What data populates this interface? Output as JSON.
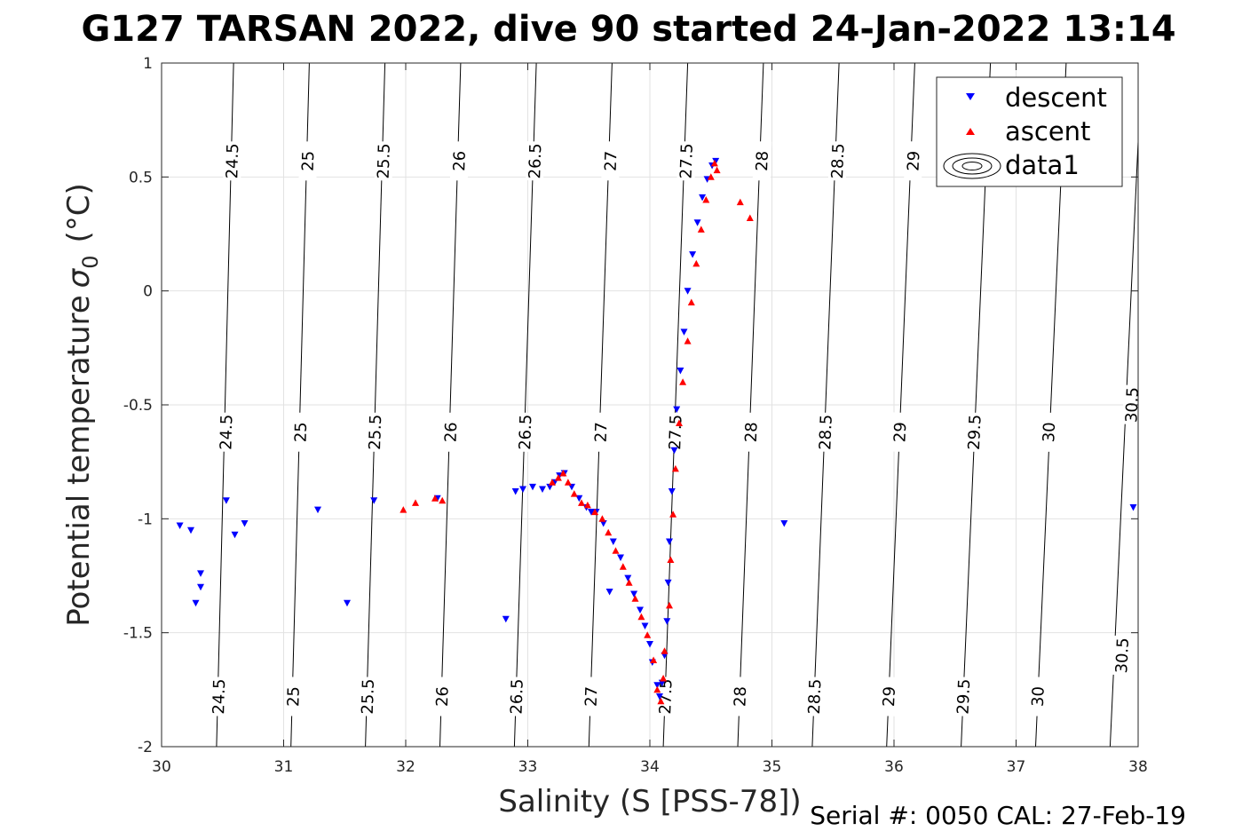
{
  "chart_data": {
    "type": "scatter",
    "title": "G127 TARSAN 2022, dive 90 started 24-Jan-2022 13:14",
    "xlabel": "Salinity (S [PSS-78])",
    "ylabel_main": "Potential temperature",
    "ylabel_symbol": "σ",
    "ylabel_subscript": "0",
    "ylabel_unit": "(°C)",
    "footer": "Serial #: 0050  CAL: 27-Feb-19",
    "xlim": [
      30,
      38
    ],
    "ylim": [
      -2,
      1
    ],
    "x_ticks": [
      30,
      31,
      32,
      33,
      34,
      35,
      36,
      37,
      38
    ],
    "x_tick_labels": [
      "30",
      "31",
      "32",
      "33",
      "34",
      "35",
      "36",
      "37",
      "38"
    ],
    "y_ticks": [
      1,
      0.5,
      0,
      -0.5,
      -1,
      -1.5,
      -2
    ],
    "y_tick_labels": [
      "1",
      "0.5",
      "0",
      "-0.5",
      "-1",
      "-1.5",
      "-2"
    ],
    "grid": true,
    "legend_position": "top-right",
    "legend": [
      {
        "label": "descent",
        "marker": "triangle-down",
        "color": "#0000ff"
      },
      {
        "label": "ascent",
        "marker": "triangle-up",
        "color": "#ff0000"
      },
      {
        "label": "data1",
        "marker": "contour",
        "color": "#000000"
      }
    ],
    "density_contours": {
      "levels": [
        "24.5",
        "25",
        "25.5",
        "26",
        "26.5",
        "27",
        "27.5",
        "28",
        "28.5",
        "29",
        "29.5",
        "30",
        "30.5"
      ],
      "lines": [
        {
          "label": "24.5",
          "points": [
            [
              30.45,
              -2
            ],
            [
              30.59,
              1
            ]
          ],
          "label_positions": [
            [
              30.47,
              -1.78
            ],
            [
              30.53,
              -0.62
            ],
            [
              30.58,
              0.57
            ]
          ]
        },
        {
          "label": "25",
          "points": [
            [
              31.06,
              -2
            ],
            [
              31.21,
              1
            ]
          ],
          "label_positions": [
            [
              31.08,
              -1.78
            ],
            [
              31.14,
              -0.62
            ],
            [
              31.2,
              0.57
            ]
          ]
        },
        {
          "label": "25.5",
          "points": [
            [
              31.67,
              -2
            ],
            [
              31.83,
              1
            ]
          ],
          "label_positions": [
            [
              31.69,
              -1.78
            ],
            [
              31.75,
              -0.62
            ],
            [
              31.82,
              0.57
            ]
          ]
        },
        {
          "label": "26",
          "points": [
            [
              32.28,
              -2
            ],
            [
              32.45,
              1
            ]
          ],
          "label_positions": [
            [
              32.3,
              -1.78
            ],
            [
              32.37,
              -0.62
            ],
            [
              32.44,
              0.57
            ]
          ]
        },
        {
          "label": "26.5",
          "points": [
            [
              32.89,
              -2
            ],
            [
              33.07,
              1
            ]
          ],
          "label_positions": [
            [
              32.91,
              -1.78
            ],
            [
              32.98,
              -0.62
            ],
            [
              33.06,
              0.57
            ]
          ]
        },
        {
          "label": "27",
          "points": [
            [
              33.5,
              -2
            ],
            [
              33.69,
              1
            ]
          ],
          "label_positions": [
            [
              33.52,
              -1.78
            ],
            [
              33.6,
              -0.62
            ],
            [
              33.68,
              0.57
            ]
          ]
        },
        {
          "label": "27.5",
          "points": [
            [
              34.11,
              -2
            ],
            [
              34.31,
              1
            ]
          ],
          "label_positions": [
            [
              34.13,
              -1.78
            ],
            [
              34.21,
              -0.62
            ],
            [
              34.3,
              0.57
            ]
          ]
        },
        {
          "label": "28",
          "points": [
            [
              34.72,
              -2
            ],
            [
              34.93,
              1
            ]
          ],
          "label_positions": [
            [
              34.74,
              -1.78
            ],
            [
              34.83,
              -0.62
            ],
            [
              34.92,
              0.57
            ]
          ]
        },
        {
          "label": "28.5",
          "points": [
            [
              35.33,
              -2
            ],
            [
              35.55,
              1
            ]
          ],
          "label_positions": [
            [
              35.35,
              -1.78
            ],
            [
              35.44,
              -0.62
            ],
            [
              35.54,
              0.57
            ]
          ]
        },
        {
          "label": "29",
          "points": [
            [
              35.94,
              -2
            ],
            [
              36.17,
              1
            ]
          ],
          "label_positions": [
            [
              35.96,
              -1.78
            ],
            [
              36.05,
              -0.62
            ],
            [
              36.16,
              0.57
            ]
          ]
        },
        {
          "label": "29.5",
          "points": [
            [
              36.55,
              -2
            ],
            [
              36.79,
              1
            ]
          ],
          "label_positions": [
            [
              36.57,
              -1.78
            ],
            [
              36.66,
              -0.62
            ]
          ]
        },
        {
          "label": "30",
          "points": [
            [
              37.16,
              -2
            ],
            [
              37.41,
              1
            ]
          ],
          "label_positions": [
            [
              37.18,
              -1.78
            ],
            [
              37.27,
              -0.62
            ]
          ]
        },
        {
          "label": "30.5",
          "points": [
            [
              37.77,
              -2
            ],
            [
              38.03,
              1
            ]
          ],
          "label_positions": [
            [
              37.87,
              -1.6
            ],
            [
              37.95,
              -0.5
            ]
          ]
        }
      ]
    },
    "series": [
      {
        "name": "descent",
        "marker": "triangle-down",
        "color": "#0000ff",
        "points": [
          [
            30.15,
            -1.03
          ],
          [
            30.24,
            -1.05
          ],
          [
            30.28,
            -1.37
          ],
          [
            30.32,
            -1.24
          ],
          [
            30.32,
            -1.3
          ],
          [
            30.53,
            -0.92
          ],
          [
            30.6,
            -1.07
          ],
          [
            30.68,
            -1.02
          ],
          [
            31.28,
            -0.96
          ],
          [
            31.52,
            -1.37
          ],
          [
            31.74,
            -0.92
          ],
          [
            32.26,
            -0.91
          ],
          [
            32.82,
            -1.44
          ],
          [
            32.9,
            -0.88
          ],
          [
            32.96,
            -0.87
          ],
          [
            33.04,
            -0.86
          ],
          [
            33.12,
            -0.87
          ],
          [
            33.18,
            -0.86
          ],
          [
            33.22,
            -0.84
          ],
          [
            33.26,
            -0.81
          ],
          [
            33.3,
            -0.8
          ],
          [
            33.36,
            -0.86
          ],
          [
            33.42,
            -0.91
          ],
          [
            33.48,
            -0.95
          ],
          [
            33.52,
            -0.97
          ],
          [
            33.56,
            -0.97
          ],
          [
            33.62,
            -1.02
          ],
          [
            33.67,
            -1.32
          ],
          [
            33.7,
            -1.1
          ],
          [
            33.76,
            -1.17
          ],
          [
            33.82,
            -1.26
          ],
          [
            33.87,
            -1.33
          ],
          [
            33.92,
            -1.4
          ],
          [
            33.96,
            -1.47
          ],
          [
            34.0,
            -1.55
          ],
          [
            34.02,
            -1.63
          ],
          [
            34.06,
            -1.73
          ],
          [
            34.08,
            -1.78
          ],
          [
            34.1,
            -1.72
          ],
          [
            34.12,
            -1.6
          ],
          [
            34.14,
            -1.45
          ],
          [
            34.15,
            -1.28
          ],
          [
            34.16,
            -1.1
          ],
          [
            34.18,
            -0.88
          ],
          [
            34.2,
            -0.7
          ],
          [
            34.22,
            -0.52
          ],
          [
            34.25,
            -0.35
          ],
          [
            34.28,
            -0.18
          ],
          [
            34.31,
            0.0
          ],
          [
            34.35,
            0.16
          ],
          [
            34.39,
            0.3
          ],
          [
            34.43,
            0.41
          ],
          [
            34.47,
            0.49
          ],
          [
            34.51,
            0.55
          ],
          [
            34.54,
            0.57
          ],
          [
            35.1,
            -1.02
          ],
          [
            37.96,
            -0.95
          ]
        ]
      },
      {
        "name": "ascent",
        "marker": "triangle-up",
        "color": "#ff0000",
        "points": [
          [
            31.98,
            -0.96
          ],
          [
            32.08,
            -0.93
          ],
          [
            32.24,
            -0.91
          ],
          [
            32.3,
            -0.92
          ],
          [
            33.2,
            -0.84
          ],
          [
            33.25,
            -0.82
          ],
          [
            33.29,
            -0.8
          ],
          [
            33.33,
            -0.84
          ],
          [
            33.38,
            -0.89
          ],
          [
            33.44,
            -0.93
          ],
          [
            33.49,
            -0.94
          ],
          [
            33.55,
            -0.97
          ],
          [
            33.61,
            -1.0
          ],
          [
            33.66,
            -1.06
          ],
          [
            33.72,
            -1.14
          ],
          [
            33.78,
            -1.21
          ],
          [
            33.83,
            -1.28
          ],
          [
            33.88,
            -1.35
          ],
          [
            33.93,
            -1.43
          ],
          [
            33.98,
            -1.51
          ],
          [
            34.03,
            -1.62
          ],
          [
            34.06,
            -1.75
          ],
          [
            34.09,
            -1.8
          ],
          [
            34.11,
            -1.7
          ],
          [
            34.12,
            -1.58
          ],
          [
            34.16,
            -1.38
          ],
          [
            34.17,
            -1.18
          ],
          [
            34.19,
            -0.98
          ],
          [
            34.21,
            -0.78
          ],
          [
            34.24,
            -0.58
          ],
          [
            34.27,
            -0.4
          ],
          [
            34.31,
            -0.22
          ],
          [
            34.34,
            -0.05
          ],
          [
            34.38,
            0.12
          ],
          [
            34.42,
            0.27
          ],
          [
            34.46,
            0.4
          ],
          [
            34.5,
            0.5
          ],
          [
            34.53,
            0.56
          ],
          [
            34.55,
            0.53
          ],
          [
            34.74,
            0.39
          ],
          [
            34.82,
            0.32
          ]
        ]
      }
    ]
  }
}
